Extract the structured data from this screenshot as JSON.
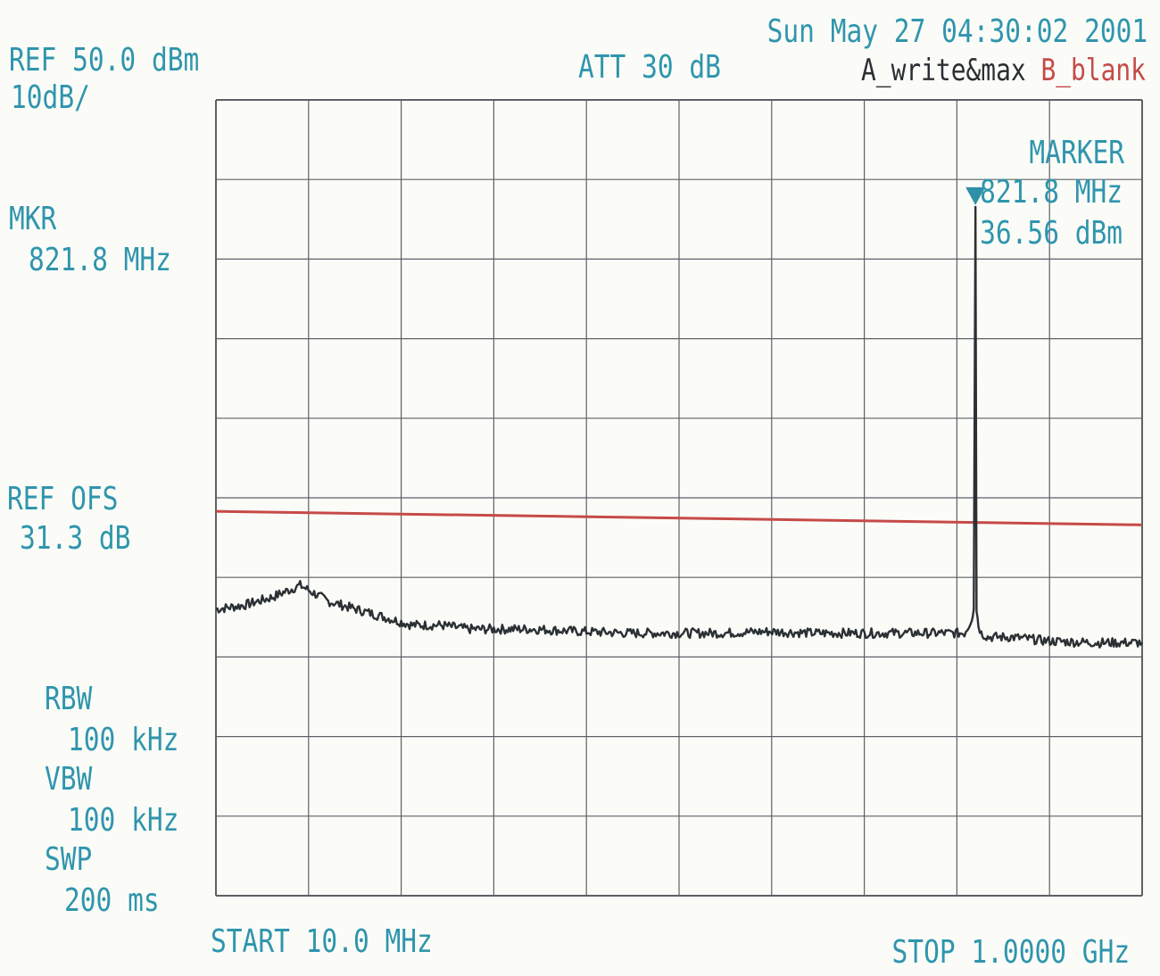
{
  "header": {
    "ref_level": "REF 50.0 dBm",
    "scale": "10dB/",
    "attenuation": "ATT 30 dB",
    "timestamp": "Sun May 27 04:30:02 2001",
    "trace_a": "A_write&max",
    "trace_b": "B_blank"
  },
  "left_panel": {
    "mkr_label": "MKR",
    "mkr_freq": "821.8 MHz",
    "ref_ofs_label": "REF OFS",
    "ref_ofs_value": "31.3 dB",
    "rbw_label": "RBW",
    "rbw_value": "100 kHz",
    "vbw_label": "VBW",
    "vbw_value": "100 kHz",
    "swp_label": "SWP",
    "swp_value": "200 ms"
  },
  "marker_box": {
    "title": "MARKER",
    "freq": "821.8 MHz",
    "level": "36.56 dBm"
  },
  "footer": {
    "start": "START 10.0 MHz",
    "stop": "STOP 1.0000 GHz"
  },
  "colors": {
    "label": "#2f95ad",
    "grid": "#5d6166",
    "trace": "#2b3034",
    "limit_line": "#c64a48",
    "marker": "#2f8fa8"
  },
  "chart_data": {
    "type": "line",
    "xlabel": "",
    "ylabel": "",
    "x_unit": "MHz",
    "y_unit": "dBm",
    "xlim": [
      10,
      1000
    ],
    "ylim": [
      -50,
      50
    ],
    "grid": true,
    "grid_divisions": {
      "x": 10,
      "y": 10
    },
    "series": [
      {
        "x": [
          10,
          40,
          70,
          100,
          130,
          160,
          190,
          220,
          250,
          280,
          310,
          350,
          400,
          450,
          500,
          550,
          600,
          650,
          700,
          750,
          790,
          810,
          815,
          818,
          820,
          821.8,
          823,
          825,
          828,
          835,
          860,
          900,
          950,
          1000
        ],
        "y": [
          -14,
          -13.5,
          -12.5,
          -11,
          -13,
          -14,
          -15,
          -16,
          -16,
          -16.5,
          -16.5,
          -16.5,
          -16.8,
          -17,
          -17,
          -17,
          -16.8,
          -17,
          -17,
          -17,
          -17,
          -17,
          -16,
          -15,
          -14,
          36.56,
          -14,
          -16,
          -17,
          -17.5,
          -17.5,
          -18,
          -18.2,
          -18.2
        ]
      }
    ],
    "limit_line": {
      "x": [
        10,
        1000
      ],
      "y": [
        -1.7,
        -3.4
      ]
    },
    "marker": {
      "x": 821.8,
      "y": 36.56
    }
  }
}
